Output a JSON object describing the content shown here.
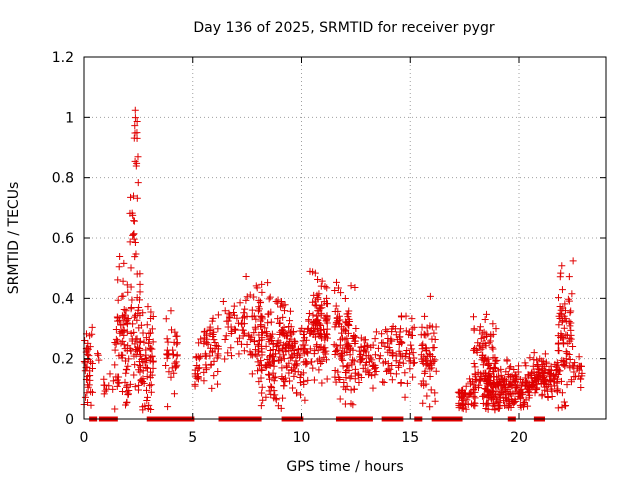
{
  "chart_data": {
    "type": "scatter",
    "title": "Day 136 of 2025, SRMTID for receiver pygr",
    "xlabel": "GPS time / hours",
    "ylabel": "SRMTID / TECUs",
    "xlim": [
      0,
      24
    ],
    "ylim": [
      0,
      1.2
    ],
    "xticks": [
      0,
      5,
      10,
      15,
      20
    ],
    "yticks": [
      0,
      0.2,
      0.4,
      0.6,
      0.8,
      1,
      1.2
    ],
    "xtick_labels": [
      "0",
      "5",
      "10",
      "15",
      "20"
    ],
    "ytick_labels": [
      "0",
      "0.2",
      "0.4",
      "0.6",
      "0.8",
      "1",
      "1.2"
    ],
    "grid": true,
    "marker": "+",
    "marker_color": "#e00000",
    "gap_marker": "square",
    "gap_segments": [
      [
        0.35,
        0.5
      ],
      [
        0.8,
        1.1
      ],
      [
        1.3,
        1.5
      ],
      [
        3.0,
        5.0
      ],
      [
        6.3,
        8.1
      ],
      [
        9.2,
        10.0
      ],
      [
        11.7,
        13.2
      ],
      [
        13.8,
        14.6
      ],
      [
        15.3,
        15.5
      ],
      [
        16.1,
        17.3
      ],
      [
        19.6,
        19.8
      ],
      [
        20.8,
        21.1
      ]
    ],
    "clusters": [
      {
        "x": [
          0.0,
          0.4
        ],
        "base": 0.18,
        "spread": 0.14,
        "n": 40
      },
      {
        "x": [
          0.6,
          0.8
        ],
        "base": 0.21,
        "spread": 0.03,
        "n": 3
      },
      {
        "x": [
          0.9,
          1.2
        ],
        "base": 0.1,
        "spread": 0.04,
        "n": 8
      },
      {
        "x": [
          1.3,
          1.6
        ],
        "base": 0.12,
        "spread": 0.03,
        "n": 6
      },
      {
        "x": [
          1.4,
          2.6
        ],
        "base": 0.28,
        "spread": 0.22,
        "n": 110
      },
      {
        "x": [
          1.9,
          2.15
        ],
        "base": 0.08,
        "spread": 0.04,
        "n": 10
      },
      {
        "x": [
          2.1,
          2.4
        ],
        "base": 0.65,
        "spread": 0.12,
        "n": 14
      },
      {
        "x": [
          2.3,
          2.5
        ],
        "base": 0.88,
        "spread": 0.13,
        "n": 14
      },
      {
        "x": [
          2.5,
          3.2
        ],
        "base": 0.2,
        "spread": 0.15,
        "n": 70
      },
      {
        "x": [
          3.7,
          4.3
        ],
        "base": 0.2,
        "spread": 0.12,
        "n": 35
      },
      {
        "x": [
          5.1,
          5.4
        ],
        "base": 0.18,
        "spread": 0.12,
        "n": 20
      },
      {
        "x": [
          5.5,
          6.2
        ],
        "base": 0.24,
        "spread": 0.1,
        "n": 50
      },
      {
        "x": [
          6.4,
          7.2
        ],
        "base": 0.3,
        "spread": 0.1,
        "n": 30
      },
      {
        "x": [
          7.2,
          8.2
        ],
        "base": 0.32,
        "spread": 0.12,
        "n": 60
      },
      {
        "x": [
          8.0,
          9.5
        ],
        "base": 0.23,
        "spread": 0.16,
        "n": 160
      },
      {
        "x": [
          9.5,
          10.3
        ],
        "base": 0.2,
        "spread": 0.1,
        "n": 70
      },
      {
        "x": [
          10.3,
          11.2
        ],
        "base": 0.3,
        "spread": 0.16,
        "n": 110
      },
      {
        "x": [
          11.5,
          12.5
        ],
        "base": 0.24,
        "spread": 0.16,
        "n": 110
      },
      {
        "x": [
          12.5,
          13.8
        ],
        "base": 0.2,
        "spread": 0.08,
        "n": 60
      },
      {
        "x": [
          13.8,
          15.2
        ],
        "base": 0.22,
        "spread": 0.1,
        "n": 80
      },
      {
        "x": [
          15.5,
          16.2
        ],
        "base": 0.22,
        "spread": 0.14,
        "n": 60
      },
      {
        "x": [
          17.2,
          18.0
        ],
        "base": 0.07,
        "spread": 0.05,
        "n": 50
      },
      {
        "x": [
          17.9,
          19.0
        ],
        "base": 0.18,
        "spread": 0.14,
        "n": 110
      },
      {
        "x": [
          18.5,
          20.5
        ],
        "base": 0.1,
        "spread": 0.07,
        "n": 190
      },
      {
        "x": [
          20.5,
          21.8
        ],
        "base": 0.14,
        "spread": 0.06,
        "n": 110
      },
      {
        "x": [
          21.8,
          22.5
        ],
        "base": 0.26,
        "spread": 0.2,
        "n": 80
      },
      {
        "x": [
          22.5,
          22.9
        ],
        "base": 0.15,
        "spread": 0.05,
        "n": 20
      }
    ]
  }
}
